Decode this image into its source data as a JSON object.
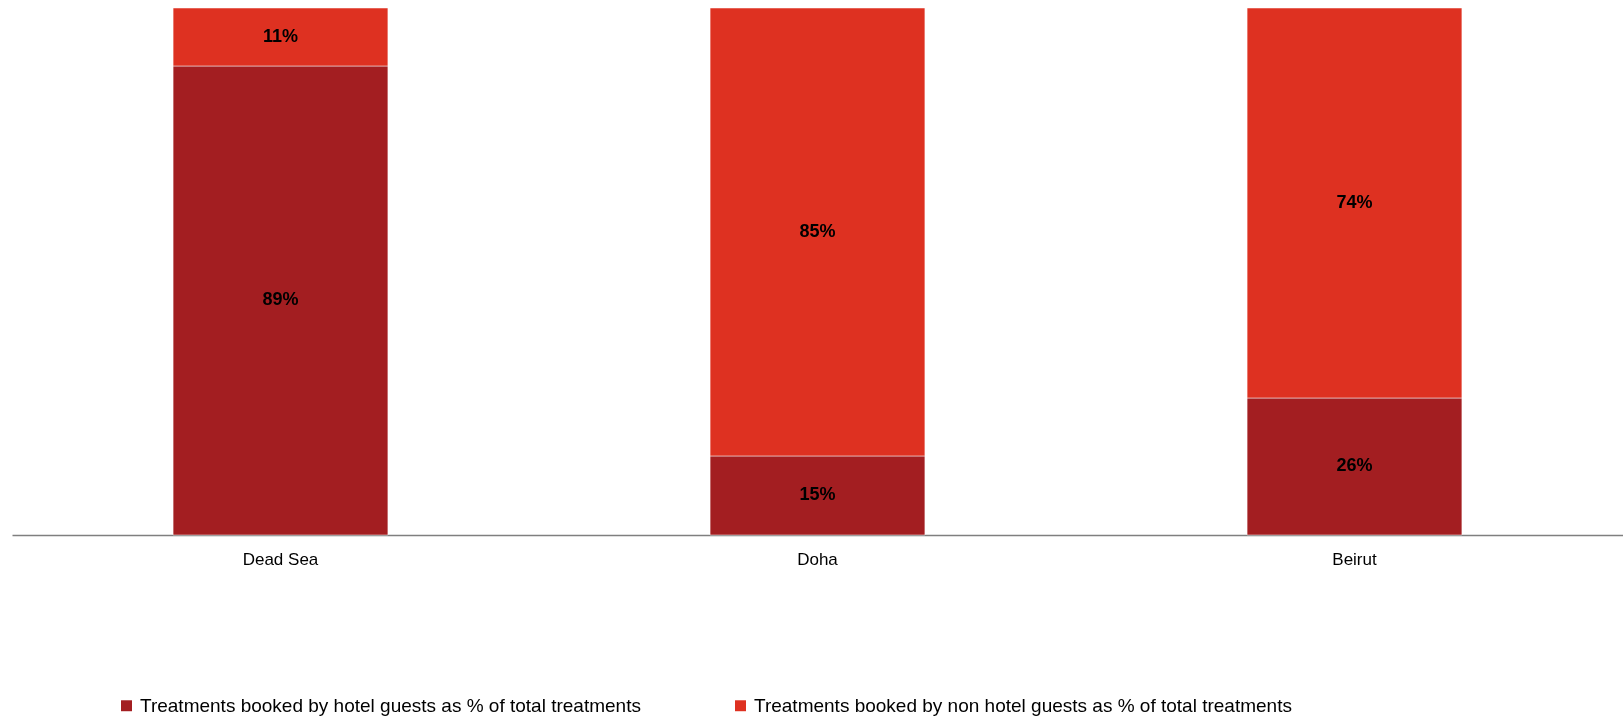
{
  "chart_data": {
    "type": "bar",
    "stacked": true,
    "categories": [
      "Dead Sea",
      "Doha",
      "Beirut"
    ],
    "series": [
      {
        "name": "Treatments booked by hotel guests as % of total treatments",
        "color": "#a31e21",
        "values": [
          89,
          15,
          26
        ],
        "value_labels": [
          "89%",
          "15%",
          "26%"
        ]
      },
      {
        "name": "Treatments booked by non hotel guests as % of total treatments",
        "color": "#de3121",
        "values": [
          11,
          85,
          74
        ],
        "value_labels": [
          "11%",
          "85%",
          "74%"
        ]
      }
    ],
    "tick_labels": "x",
    "legend": "bottom"
  }
}
